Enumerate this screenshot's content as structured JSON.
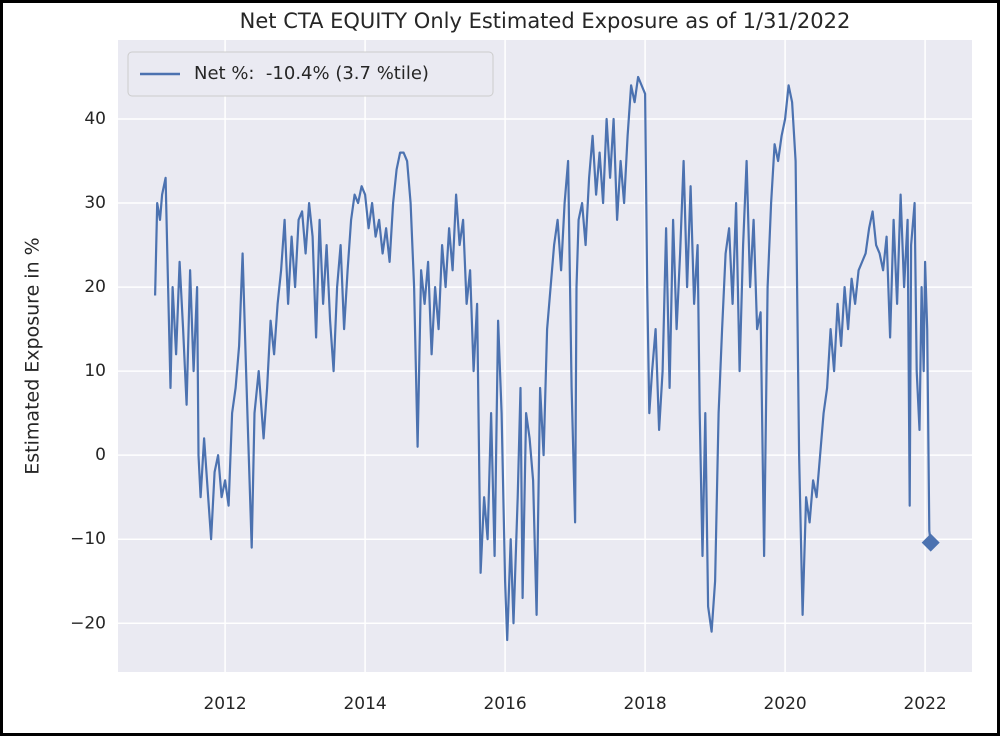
{
  "chart_data": {
    "type": "line",
    "title": "Net CTA EQUITY Only Estimated Exposure as of 1/31/2022",
    "y_label": "Estimated Exposure in %",
    "xlim": [
      2010.47,
      2022.67
    ],
    "ylim": [
      -25.8,
      49.4
    ],
    "xticks": [
      2012,
      2014,
      2016,
      2018,
      2020,
      2022
    ],
    "yticks": [
      {
        "value": -20,
        "label": "−20"
      },
      {
        "value": -10,
        "label": "−10"
      },
      0,
      10,
      20,
      30,
      40
    ],
    "grid": true,
    "legend": "upper left",
    "end_marker": "diamond",
    "x": [
      2011.0,
      2011.03,
      2011.07,
      2011.1,
      2011.15,
      2011.18,
      2011.22,
      2011.25,
      2011.3,
      2011.35,
      2011.4,
      2011.45,
      2011.5,
      2011.55,
      2011.6,
      2011.62,
      2011.65,
      2011.7,
      2011.75,
      2011.8,
      2011.85,
      2011.9,
      2011.95,
      2012.0,
      2012.05,
      2012.1,
      2012.15,
      2012.2,
      2012.25,
      2012.3,
      2012.33,
      2012.38,
      2012.42,
      2012.48,
      2012.55,
      2012.6,
      2012.65,
      2012.7,
      2012.75,
      2012.8,
      2012.85,
      2012.9,
      2012.95,
      2013.0,
      2013.05,
      2013.1,
      2013.15,
      2013.2,
      2013.25,
      2013.3,
      2013.35,
      2013.4,
      2013.45,
      2013.5,
      2013.55,
      2013.6,
      2013.65,
      2013.7,
      2013.75,
      2013.8,
      2013.85,
      2013.9,
      2013.95,
      2014.0,
      2014.05,
      2014.1,
      2014.15,
      2014.2,
      2014.25,
      2014.3,
      2014.35,
      2014.4,
      2014.45,
      2014.5,
      2014.55,
      2014.6,
      2014.65,
      2014.7,
      2014.75,
      2014.8,
      2014.85,
      2014.9,
      2014.95,
      2015.0,
      2015.05,
      2015.1,
      2015.15,
      2015.2,
      2015.25,
      2015.3,
      2015.35,
      2015.4,
      2015.45,
      2015.5,
      2015.55,
      2015.6,
      2015.62,
      2015.65,
      2015.7,
      2015.75,
      2015.8,
      2015.85,
      2015.9,
      2015.95,
      2016.0,
      2016.03,
      2016.08,
      2016.12,
      2016.18,
      2016.22,
      2016.25,
      2016.3,
      2016.35,
      2016.4,
      2016.45,
      2016.5,
      2016.55,
      2016.6,
      2016.65,
      2016.7,
      2016.75,
      2016.8,
      2016.85,
      2016.9,
      2016.95,
      2017.0,
      2017.02,
      2017.05,
      2017.1,
      2017.15,
      2017.2,
      2017.25,
      2017.3,
      2017.35,
      2017.4,
      2017.45,
      2017.5,
      2017.55,
      2017.6,
      2017.65,
      2017.7,
      2017.75,
      2017.8,
      2017.85,
      2017.9,
      2017.95,
      2018.0,
      2018.03,
      2018.06,
      2018.1,
      2018.15,
      2018.2,
      2018.25,
      2018.3,
      2018.35,
      2018.4,
      2018.45,
      2018.5,
      2018.55,
      2018.6,
      2018.65,
      2018.7,
      2018.75,
      2018.78,
      2018.82,
      2018.86,
      2018.9,
      2018.95,
      2019.0,
      2019.05,
      2019.1,
      2019.15,
      2019.2,
      2019.25,
      2019.3,
      2019.35,
      2019.4,
      2019.45,
      2019.5,
      2019.55,
      2019.6,
      2019.65,
      2019.7,
      2019.75,
      2019.8,
      2019.85,
      2019.9,
      2019.95,
      2020.0,
      2020.05,
      2020.1,
      2020.15,
      2020.2,
      2020.25,
      2020.3,
      2020.35,
      2020.4,
      2020.45,
      2020.5,
      2020.55,
      2020.6,
      2020.65,
      2020.7,
      2020.75,
      2020.8,
      2020.85,
      2020.9,
      2020.95,
      2021.0,
      2021.05,
      2021.1,
      2021.15,
      2021.2,
      2021.25,
      2021.3,
      2021.35,
      2021.4,
      2021.45,
      2021.5,
      2021.55,
      2021.6,
      2021.65,
      2021.7,
      2021.75,
      2021.78,
      2021.8,
      2021.85,
      2021.88,
      2021.92,
      2021.95,
      2021.98,
      2022.0,
      2022.03,
      2022.06,
      2022.08
    ],
    "series": [
      {
        "name": "Net %:  -10.4% (3.7 %tile)",
        "color": "#4c72b0",
        "values": [
          19,
          30,
          28,
          31,
          33,
          22,
          8,
          20,
          12,
          23,
          15,
          6,
          22,
          10,
          20,
          0,
          -5,
          2,
          -4,
          -10,
          -2,
          0,
          -5,
          -3,
          -6,
          5,
          8,
          13,
          24,
          10,
          2,
          -11,
          5,
          10,
          2,
          8,
          16,
          12,
          18,
          22,
          28,
          18,
          26,
          20,
          28,
          29,
          24,
          30,
          26,
          14,
          28,
          18,
          25,
          16,
          10,
          20,
          25,
          15,
          22,
          28,
          31,
          30,
          32,
          31,
          27,
          30,
          26,
          28,
          24,
          27,
          23,
          30,
          34,
          36,
          36,
          35,
          30,
          20,
          1,
          22,
          18,
          23,
          12,
          20,
          15,
          25,
          20,
          27,
          22,
          31,
          25,
          28,
          18,
          22,
          10,
          18,
          5,
          -14,
          -5,
          -10,
          5,
          -12,
          16,
          5,
          -15,
          -22,
          -10,
          -20,
          -5,
          8,
          -17,
          5,
          2,
          -3,
          -19,
          8,
          0,
          15,
          20,
          25,
          28,
          22,
          30,
          35,
          8,
          -8,
          20,
          28,
          30,
          25,
          33,
          38,
          31,
          36,
          30,
          40,
          33,
          40,
          28,
          35,
          30,
          38,
          44,
          42,
          45,
          44,
          43,
          20,
          5,
          10,
          15,
          3,
          10,
          27,
          8,
          28,
          15,
          24,
          35,
          20,
          32,
          18,
          25,
          5,
          -12,
          5,
          -18,
          -21,
          -15,
          5,
          15,
          24,
          27,
          18,
          30,
          10,
          25,
          35,
          20,
          28,
          15,
          17,
          -12,
          20,
          30,
          37,
          35,
          38,
          40,
          44,
          42,
          35,
          0,
          -19,
          -5,
          -8,
          -3,
          -5,
          0,
          5,
          8,
          15,
          10,
          18,
          13,
          20,
          15,
          21,
          18,
          22,
          23,
          24,
          27,
          29,
          25,
          24,
          22,
          26,
          14,
          28,
          18,
          31,
          20,
          28,
          -6,
          25,
          30,
          10,
          3,
          20,
          10,
          23,
          15,
          -9,
          -10.4
        ]
      }
    ]
  }
}
